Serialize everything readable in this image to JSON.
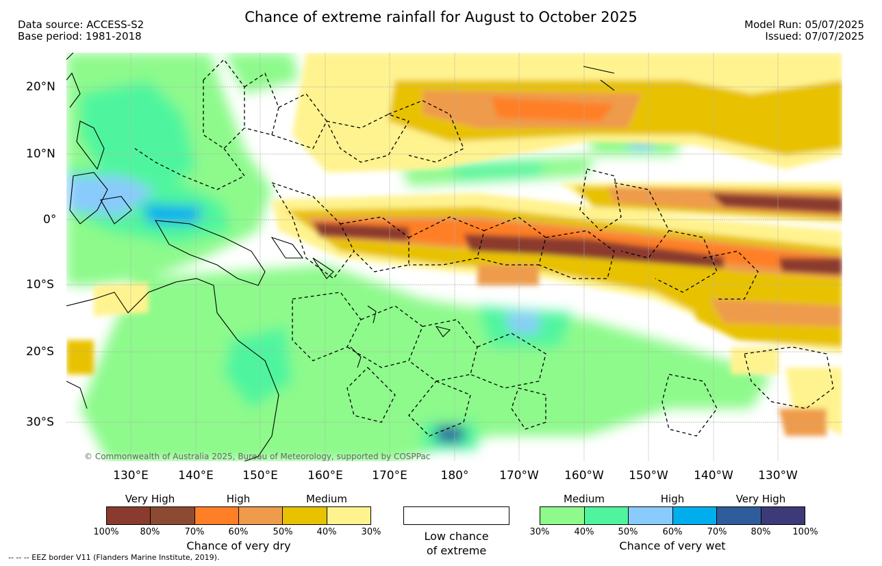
{
  "header": {
    "title": "Chance of extreme rainfall for August to October 2025",
    "data_source": "Data source: ACCESS-S2",
    "base_period": "Base period: 1981-2018",
    "model_run": "Model Run: 05/07/2025",
    "issued": "Issued: 07/07/2025"
  },
  "map": {
    "lat_labels": [
      "20°N",
      "10°N",
      "0°",
      "10°S",
      "20°S",
      "30°S"
    ],
    "lon_labels": [
      "130°E",
      "140°E",
      "150°E",
      "160°E",
      "170°E",
      "180°",
      "170°W",
      "160°W",
      "150°W",
      "140°W",
      "130°W"
    ],
    "copyright": "© Commonwealth of Australia 2025, Bureau of Meteorology, supported by COSPPac",
    "colors": {
      "land_outline": "#000000",
      "eez_border": "#000000",
      "gridline": "#b0b0b0"
    }
  },
  "legend": {
    "dry": {
      "labels": [
        "Very High",
        "High",
        "Medium"
      ],
      "colors": [
        "#8b3b2d",
        "#8c4a33",
        "#ff7f27",
        "#ee9b4b",
        "#e8c200",
        "#fff38f"
      ],
      "ticks": [
        "100%",
        "80%",
        "70%",
        "60%",
        "50%",
        "40%",
        "30%"
      ],
      "caption": "Chance of very dry"
    },
    "low": {
      "caption_line1": "Low chance",
      "caption_line2": "of extreme",
      "color": "#ffffff"
    },
    "wet": {
      "labels": [
        "Medium",
        "High",
        "Very High"
      ],
      "colors": [
        "#8dfa8b",
        "#4ff59e",
        "#89cbfc",
        "#00aeee",
        "#2f5d9b",
        "#3d3a7a"
      ],
      "ticks": [
        "30%",
        "40%",
        "50%",
        "60%",
        "70%",
        "80%",
        "100%"
      ],
      "caption": "Chance of very wet"
    }
  },
  "footnote": "--  --  -- EEZ border V11 (Flanders Marine Institute, 2019)."
}
